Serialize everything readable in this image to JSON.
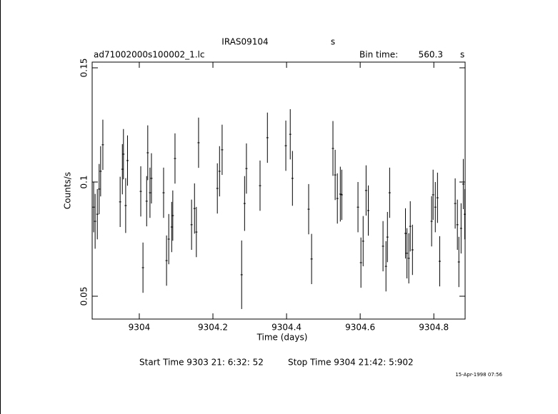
{
  "chart_data": {
    "type": "errorbar",
    "object": "IRAS09104",
    "object_unit": "s",
    "title": "ad71002000s100002_1.lc",
    "bin_time_label": "Bin time:",
    "bin_time": "560.3",
    "bin_time_unit": "s",
    "ylabel": "Counts/s",
    "xlabel": "Time (days)",
    "start_time": "Start Time  9303 21: 6:32: 52",
    "stop_time": "Stop Time  9304 21:42: 5:902",
    "date_stamp": "15-Apr-1998 07:56",
    "xlim": [
      9303.872,
      9304.885
    ],
    "ylim": [
      0.04,
      0.1525
    ],
    "xticks": [
      9304,
      9304.2,
      9304.4,
      9304.6,
      9304.8
    ],
    "yticks": [
      0.05,
      0.1,
      0.15
    ],
    "x": [
      9303.876,
      9303.88,
      9303.886,
      9303.891,
      9303.895,
      9303.901,
      9303.948,
      9303.954,
      9303.957,
      9303.963,
      9303.968,
      9304.004,
      9304.01,
      9304.02,
      9304.023,
      9304.029,
      9304.033,
      9304.066,
      9304.074,
      9304.08,
      9304.088,
      9304.091,
      9304.097,
      9304.142,
      9304.15,
      9304.155,
      9304.161,
      9304.212,
      9304.218,
      9304.225,
      9304.278,
      9304.286,
      9304.291,
      9304.328,
      9304.348,
      9304.398,
      9304.41,
      9304.416,
      9304.46,
      9304.468,
      9304.526,
      9304.532,
      9304.538,
      9304.546,
      9304.55,
      9304.594,
      9304.602,
      9304.608,
      9304.616,
      9304.622,
      9304.662,
      9304.67,
      9304.674,
      9304.68,
      9304.723,
      9304.727,
      9304.732,
      9304.736,
      9304.742,
      9304.794,
      9304.798,
      9304.804,
      9304.81,
      9304.816,
      9304.858,
      9304.864,
      9304.868,
      9304.874,
      9304.88,
      9304.884
    ],
    "series": [
      {
        "color": "#000000",
        "values": [
          0.089,
          0.0828,
          0.0859,
          0.0969,
          0.1047,
          0.1163,
          0.0913,
          0.1056,
          0.1122,
          0.0897,
          0.1094,
          0.0959,
          0.0625,
          0.0916,
          0.1128,
          0.0953,
          0.1016,
          0.0953,
          0.0656,
          0.075,
          0.0803,
          0.0853,
          0.1103,
          0.0813,
          0.0884,
          0.0781,
          0.1172,
          0.0972,
          0.1047,
          0.1141,
          0.0594,
          0.0906,
          0.1059,
          0.0984,
          0.1194,
          0.1159,
          0.1209,
          0.1016,
          0.0881,
          0.0663,
          0.1147,
          0.1031,
          0.0928,
          0.0947,
          0.0944,
          0.089,
          0.0647,
          0.0741,
          0.0963,
          0.0875,
          0.0719,
          0.0631,
          0.0759,
          0.0953,
          0.0775,
          0.0688,
          0.0666,
          0.0806,
          0.0703,
          0.0828,
          0.0944,
          0.089,
          0.0931,
          0.0653,
          0.0906,
          0.0813,
          0.065,
          0.0797,
          0.0991,
          0.0859
        ],
        "errors": [
          0.011,
          0.012,
          0.011,
          0.011,
          0.011,
          0.011,
          0.011,
          0.011,
          0.011,
          0.012,
          0.011,
          0.011,
          0.011,
          0.011,
          0.012,
          0.011,
          0.011,
          0.011,
          0.011,
          0.011,
          0.011,
          0.011,
          0.011,
          0.011,
          0.011,
          0.011,
          0.011,
          0.011,
          0.011,
          0.011,
          0.015,
          0.012,
          0.011,
          0.011,
          0.011,
          0.011,
          0.011,
          0.012,
          0.011,
          0.011,
          0.012,
          0.011,
          0.011,
          0.012,
          0.011,
          0.011,
          0.011,
          0.011,
          0.011,
          0.011,
          0.011,
          0.011,
          0.011,
          0.011,
          0.011,
          0.011,
          0.011,
          0.011,
          0.011,
          0.011,
          0.011,
          0.011,
          0.011,
          0.011,
          0.011,
          0.011,
          0.011,
          0.011,
          0.011,
          0.011
        ]
      }
    ]
  }
}
